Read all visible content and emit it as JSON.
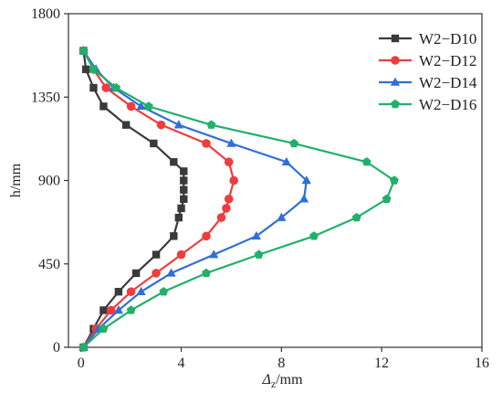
{
  "chart_data": {
    "type": "line",
    "xlabel_main": "Δ",
    "xlabel_sub": "z",
    "xlabel_unit": "/mm",
    "ylabel": "h/mm",
    "xlim": [
      -0.5,
      16
    ],
    "ylim": [
      0,
      1800
    ],
    "xticks": [
      0,
      4,
      8,
      12,
      16
    ],
    "yticks": [
      0,
      450,
      900,
      1350,
      1800
    ],
    "legend_position": "top-right",
    "series": [
      {
        "name": "W2−D10",
        "color": "#3a3a3a",
        "marker": "square",
        "points": [
          [
            0.1,
            1600
          ],
          [
            0.2,
            1500
          ],
          [
            0.5,
            1400
          ],
          [
            0.9,
            1300
          ],
          [
            1.8,
            1200
          ],
          [
            2.9,
            1100
          ],
          [
            3.7,
            1000
          ],
          [
            4.1,
            950
          ],
          [
            4.1,
            900
          ],
          [
            4.1,
            850
          ],
          [
            4.1,
            800
          ],
          [
            4.0,
            750
          ],
          [
            3.9,
            700
          ],
          [
            3.7,
            600
          ],
          [
            3.0,
            500
          ],
          [
            2.2,
            400
          ],
          [
            1.5,
            300
          ],
          [
            0.9,
            200
          ],
          [
            0.5,
            100
          ],
          [
            0.1,
            0
          ]
        ]
      },
      {
        "name": "W2−D12",
        "color": "#f03c3c",
        "marker": "circle",
        "points": [
          [
            0.1,
            1600
          ],
          [
            0.5,
            1500
          ],
          [
            1.0,
            1400
          ],
          [
            2.0,
            1300
          ],
          [
            3.2,
            1200
          ],
          [
            5.0,
            1100
          ],
          [
            5.9,
            1000
          ],
          [
            6.1,
            900
          ],
          [
            5.9,
            800
          ],
          [
            5.8,
            750
          ],
          [
            5.6,
            700
          ],
          [
            5.0,
            600
          ],
          [
            4.0,
            500
          ],
          [
            3.0,
            400
          ],
          [
            2.0,
            300
          ],
          [
            1.2,
            200
          ],
          [
            0.6,
            100
          ],
          [
            0.1,
            0
          ]
        ]
      },
      {
        "name": "W2−D14",
        "color": "#2e6fdc",
        "marker": "triangle",
        "points": [
          [
            0.1,
            1600
          ],
          [
            0.6,
            1500
          ],
          [
            1.3,
            1400
          ],
          [
            2.4,
            1300
          ],
          [
            3.9,
            1200
          ],
          [
            6.0,
            1100
          ],
          [
            8.2,
            1000
          ],
          [
            9.0,
            900
          ],
          [
            8.9,
            800
          ],
          [
            8.0,
            700
          ],
          [
            7.0,
            600
          ],
          [
            5.3,
            500
          ],
          [
            3.6,
            400
          ],
          [
            2.4,
            300
          ],
          [
            1.5,
            200
          ],
          [
            0.7,
            100
          ],
          [
            0.1,
            0
          ]
        ]
      },
      {
        "name": "W2−D16",
        "color": "#21b06a",
        "marker": "pentagon",
        "points": [
          [
            0.1,
            1600
          ],
          [
            0.5,
            1500
          ],
          [
            1.4,
            1400
          ],
          [
            2.7,
            1300
          ],
          [
            5.2,
            1200
          ],
          [
            8.5,
            1100
          ],
          [
            11.4,
            1000
          ],
          [
            12.5,
            900
          ],
          [
            12.2,
            800
          ],
          [
            11.0,
            700
          ],
          [
            9.3,
            600
          ],
          [
            7.1,
            500
          ],
          [
            5.0,
            400
          ],
          [
            3.3,
            300
          ],
          [
            2.0,
            200
          ],
          [
            0.9,
            100
          ],
          [
            0.1,
            0
          ]
        ]
      }
    ]
  }
}
